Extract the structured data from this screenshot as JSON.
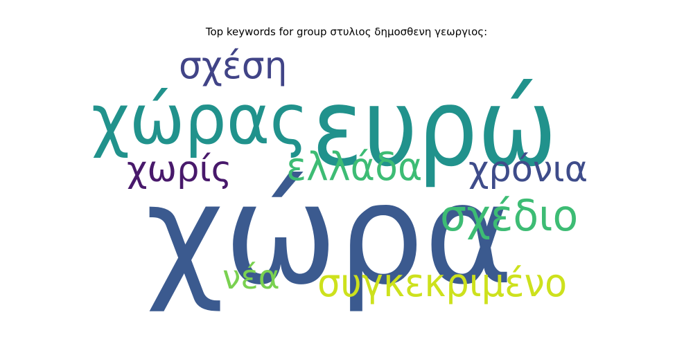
{
  "chart_data": {
    "type": "wordcloud",
    "title": "Top keywords for group στυλιος δημοσθενη γεωργιος:",
    "words": [
      {
        "text": "χώρα",
        "weight": 1.0,
        "color": "#3b5a8f"
      },
      {
        "text": "ευρώ",
        "weight": 0.9,
        "color": "#21928c"
      },
      {
        "text": "χώρας",
        "weight": 0.62,
        "color": "#21928c"
      },
      {
        "text": "συγκεκριμένο",
        "weight": 0.36,
        "color": "#cde11d"
      },
      {
        "text": "σχέδιο",
        "weight": 0.38,
        "color": "#3dbc74"
      },
      {
        "text": "ελλάδα",
        "weight": 0.33,
        "color": "#3dbc74"
      },
      {
        "text": "χρόνια",
        "weight": 0.31,
        "color": "#3e4c8a"
      },
      {
        "text": "σχέση",
        "weight": 0.32,
        "color": "#414487"
      },
      {
        "text": "χωρίς",
        "weight": 0.31,
        "color": "#48196b"
      },
      {
        "text": "νέα",
        "weight": 0.28,
        "color": "#7ad151"
      }
    ]
  }
}
